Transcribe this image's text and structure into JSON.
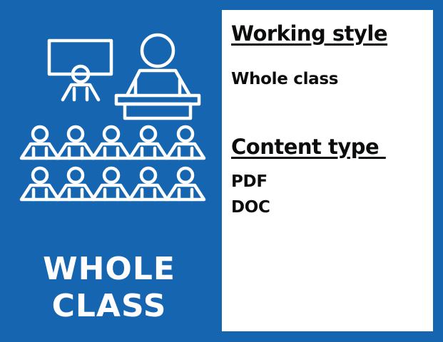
{
  "badge": {
    "title_line1": "WHOLE",
    "title_line2": "CLASS",
    "icon": "whole-class-classroom-icon"
  },
  "panel": {
    "working_style_heading": "Working style",
    "working_style_value": "Whole class",
    "content_type_heading": "Content type ",
    "content_types": [
      "PDF",
      "DOC"
    ]
  },
  "colors": {
    "background": "#1565b0",
    "panel": "#ffffff",
    "text": "#0b0c0c",
    "icon": "#ffffff"
  }
}
